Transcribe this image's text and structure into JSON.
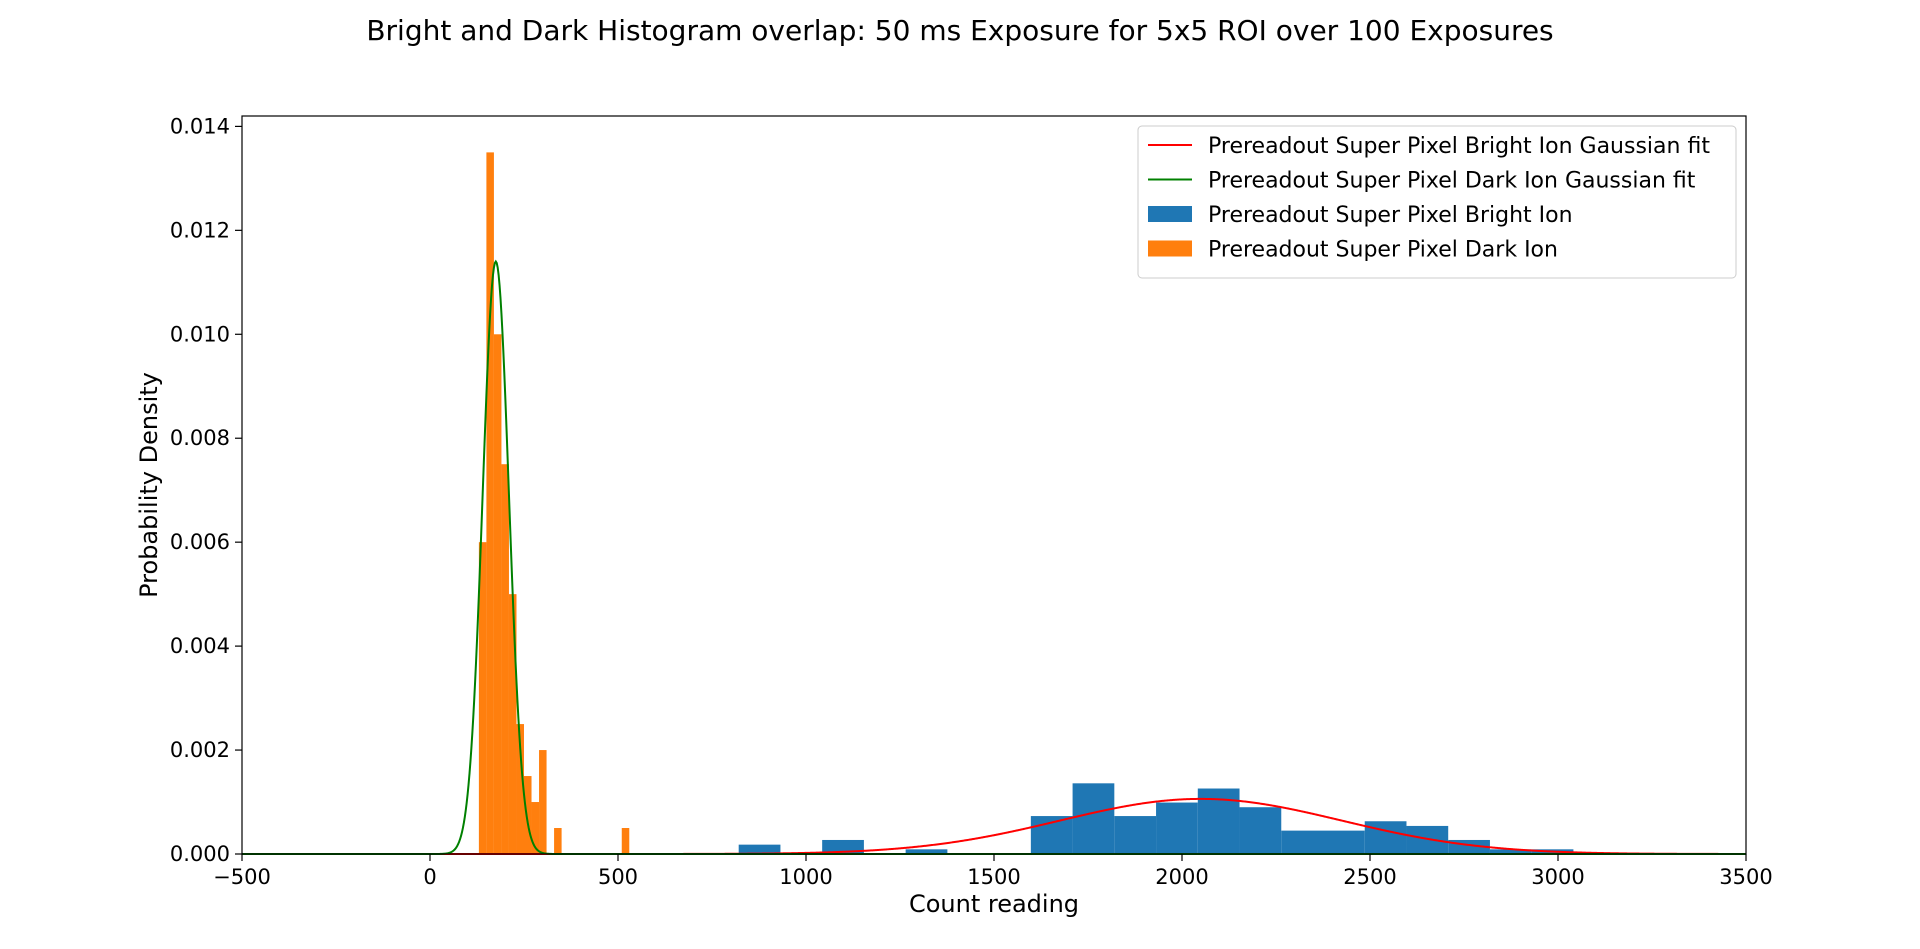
{
  "chart_data": {
    "type": "bar",
    "title": "Bright and Dark Histogram overlap: 50 ms Exposure for 5x5 ROI over 100 Exposures",
    "xlabel": "Count reading",
    "ylabel": "Probability Density",
    "xlim": [
      -500,
      3500
    ],
    "ylim": [
      0,
      0.0142
    ],
    "xticks": [
      -500,
      0,
      500,
      1000,
      1500,
      2000,
      2500,
      3000,
      3500
    ],
    "xtick_labels": [
      "−500",
      "0",
      "500",
      "1000",
      "1500",
      "2000",
      "2500",
      "3000",
      "3500"
    ],
    "yticks": [
      0,
      0.002,
      0.004,
      0.006,
      0.008,
      0.01,
      0.012,
      0.014
    ],
    "ytick_labels": [
      "0.000",
      "0.002",
      "0.004",
      "0.006",
      "0.008",
      "0.010",
      "0.012",
      "0.014"
    ],
    "grid": false,
    "legend_position": "top-right",
    "series": [
      {
        "name": "Prereadout Super Pixel Bright Ion Gaussian fit",
        "kind": "line",
        "color": "#ff0000",
        "mu": 2050,
        "sigma": 375,
        "peak": 0.00106
      },
      {
        "name": "Prereadout Super Pixel Dark Ion Gaussian fit",
        "kind": "line",
        "color": "#008000",
        "mu": 175,
        "sigma": 35,
        "peak": 0.0114
      },
      {
        "name": "Prereadout Super Pixel Bright Ion",
        "kind": "histogram",
        "color": "#1f77b4",
        "bins": [
          [
            821,
            932,
            0.00018
          ],
          [
            932,
            1043,
            0.0
          ],
          [
            1043,
            1154,
            0.00027
          ],
          [
            1154,
            1265,
            0.0
          ],
          [
            1265,
            1376,
            9e-05
          ],
          [
            1376,
            1487,
            0.0
          ],
          [
            1487,
            1598,
            0.0
          ],
          [
            1598,
            1709,
            0.00073
          ],
          [
            1709,
            1820,
            0.00136
          ],
          [
            1820,
            1931,
            0.00073
          ],
          [
            1931,
            2042,
            0.00099
          ],
          [
            2042,
            2153,
            0.00126
          ],
          [
            2153,
            2264,
            0.0009
          ],
          [
            2264,
            2375,
            0.00045
          ],
          [
            2375,
            2486,
            0.00045
          ],
          [
            2486,
            2597,
            0.00063
          ],
          [
            2597,
            2708,
            0.00054
          ],
          [
            2708,
            2819,
            0.00027
          ],
          [
            2819,
            2930,
            9e-05
          ],
          [
            2930,
            3041,
            9e-05
          ]
        ]
      },
      {
        "name": "Prereadout Super Pixel Dark Ion",
        "kind": "histogram",
        "color": "#ff7f0e",
        "bins": [
          [
            130,
            150,
            0.006
          ],
          [
            150,
            170,
            0.0135
          ],
          [
            170,
            190,
            0.01
          ],
          [
            190,
            210,
            0.0075
          ],
          [
            210,
            230,
            0.005
          ],
          [
            230,
            250,
            0.0025
          ],
          [
            250,
            270,
            0.0015
          ],
          [
            270,
            290,
            0.001
          ],
          [
            290,
            310,
            0.002
          ],
          [
            330,
            350,
            0.0005
          ],
          [
            510,
            530,
            0.0005
          ]
        ]
      }
    ]
  }
}
